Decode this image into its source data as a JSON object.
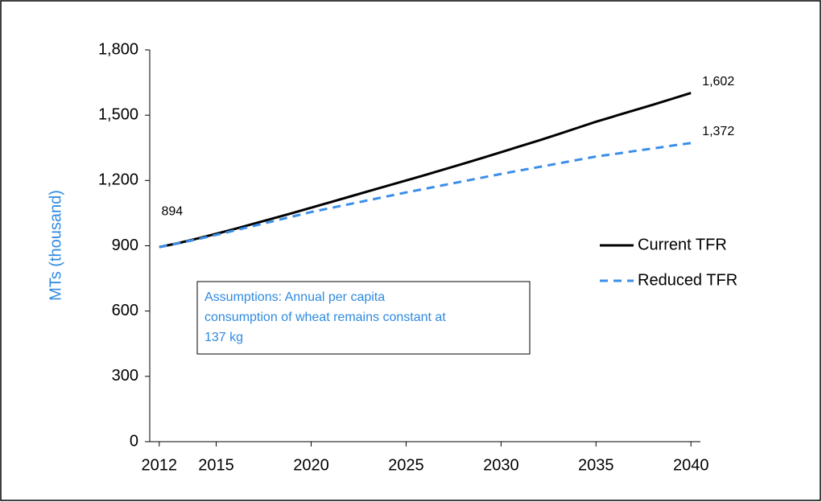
{
  "chart_data": {
    "type": "line",
    "y_label": "MTs (thousand)",
    "x": [
      2012,
      2013,
      2014,
      2015,
      2016,
      2017,
      2018,
      2019,
      2020,
      2021,
      2022,
      2023,
      2024,
      2025,
      2026,
      2027,
      2028,
      2029,
      2030,
      2031,
      2032,
      2033,
      2034,
      2035,
      2036,
      2037,
      2038,
      2039,
      2040
    ],
    "series": [
      {
        "name": "Current TFR",
        "color": "#000000",
        "dash": false,
        "values": [
          894,
          912,
          933,
          955,
          978,
          1002,
          1026,
          1050,
          1075,
          1100,
          1125,
          1150,
          1175,
          1200,
          1225,
          1251,
          1277,
          1303,
          1330,
          1357,
          1384,
          1412,
          1441,
          1470,
          1496,
          1522,
          1548,
          1575,
          1602
        ],
        "value_labels": [
          "894",
          null,
          null,
          null,
          null,
          null,
          null,
          null,
          null,
          null,
          null,
          null,
          null,
          null,
          null,
          null,
          null,
          null,
          null,
          null,
          null,
          null,
          null,
          null,
          null,
          null,
          null,
          null,
          "1,602"
        ]
      },
      {
        "name": "Reduced TFR",
        "color": "#3b8ee8",
        "dash": true,
        "values": [
          894,
          911,
          930,
          950,
          971,
          992,
          1013,
          1034,
          1055,
          1073,
          1091,
          1109,
          1127,
          1145,
          1162,
          1179,
          1196,
          1213,
          1230,
          1246,
          1262,
          1278,
          1294,
          1310,
          1322,
          1335,
          1347,
          1360,
          1372
        ],
        "value_labels": [
          null,
          null,
          null,
          null,
          null,
          null,
          null,
          null,
          null,
          null,
          null,
          null,
          null,
          null,
          null,
          null,
          null,
          null,
          null,
          null,
          null,
          null,
          null,
          null,
          null,
          null,
          null,
          null,
          "1,372"
        ]
      }
    ],
    "xlim": [
      2011.5,
      2040.5
    ],
    "xticks": [
      2012,
      2015,
      2020,
      2025,
      2030,
      2035,
      2040
    ],
    "ylim": [
      0,
      1800
    ],
    "yticks": [
      0,
      300,
      600,
      900,
      {
        "value": 1200,
        "label": "1,200"
      },
      {
        "value": 1500,
        "label": "1,500"
      },
      {
        "value": 1800,
        "label": "1,800"
      }
    ],
    "grid": false,
    "legend": "right",
    "annotation": [
      "Assumptions: Annual per capita",
      "consumption of wheat remains constant at",
      "137 kg"
    ]
  }
}
